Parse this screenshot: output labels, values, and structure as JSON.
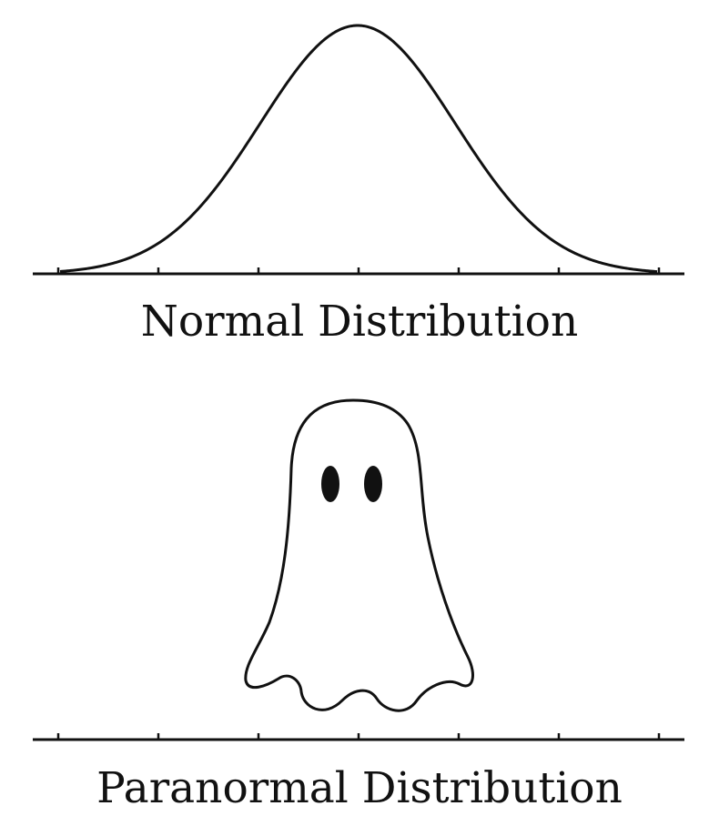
{
  "panels": {
    "normal": {
      "caption": "Normal Distribution",
      "curve": "bell-curve",
      "tick_count": 7
    },
    "paranormal": {
      "caption": "Paranormal Distribution",
      "figure": "ghost-icon",
      "tick_count": 7
    }
  },
  "colors": {
    "ink": "#111111",
    "background": "#ffffff"
  }
}
